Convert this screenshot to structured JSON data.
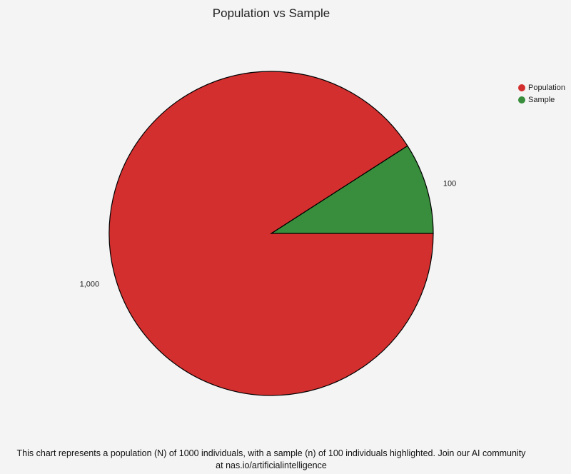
{
  "chart_data": {
    "type": "pie",
    "title": "Population vs Sample",
    "categories": [
      "Population",
      "Sample"
    ],
    "values": [
      1000,
      100
    ],
    "value_labels": [
      "1,000",
      "100"
    ],
    "colors": [
      "#d32f2f",
      "#388e3c"
    ],
    "legend_position": "top-right"
  },
  "caption": {
    "line1": "This chart represents a population (N) of 1000 individuals, with a sample (n) of 100 individuals highlighted. Join our AI community",
    "line2": "at nas.io/artificialintelligence"
  }
}
